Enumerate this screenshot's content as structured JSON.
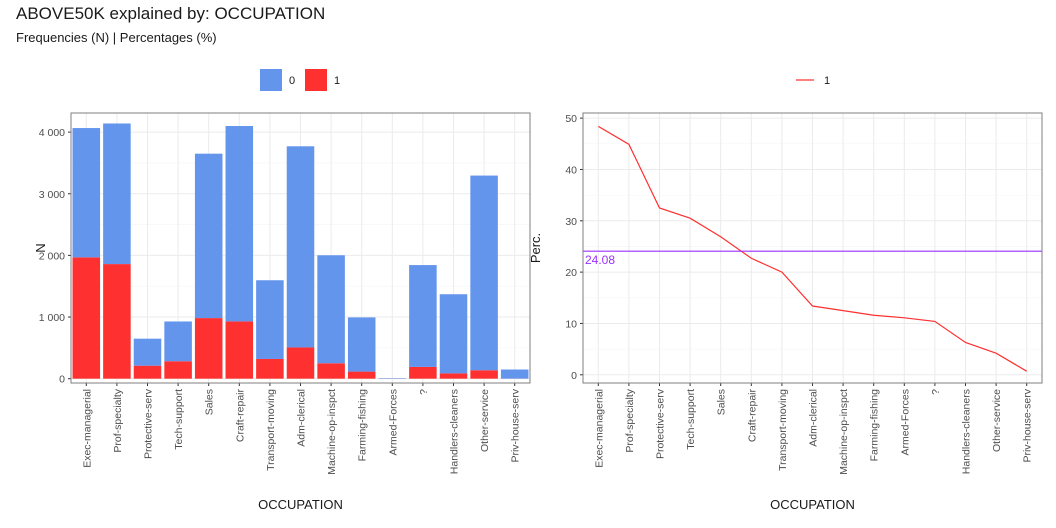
{
  "title": "ABOVE50K explained by: OCCUPATION",
  "subtitle": "Frequencies (N) | Percentages (%)",
  "colors": {
    "zero": "#6495ED",
    "one": "#FF3030",
    "ref": "#9B30FF",
    "grid": "#EBEBEB",
    "minor": "#F5F5F5",
    "panel_border": "#7F7F7F"
  },
  "chart_data": [
    {
      "type": "bar",
      "stacked": true,
      "xlabel": "OCCUPATION",
      "ylabel": "N",
      "ylim": [
        -70,
        4310
      ],
      "yticks": [
        0,
        1000,
        2000,
        3000,
        4000
      ],
      "ytick_labels": [
        "0",
        "1 000",
        "2 000",
        "3 000",
        "4 000"
      ],
      "legend_position": "top",
      "categories": [
        "Exec-managerial",
        "Prof-specialty",
        "Protective-serv",
        "Tech-support",
        "Sales",
        "Craft-repair",
        "Transport-moving",
        "Adm-clerical",
        "Machine-op-inspct",
        "Farming-fishing",
        "Armed-Forces",
        "?",
        "Handlers-cleaners",
        "Other-service",
        "Priv-house-serv"
      ],
      "series": [
        {
          "name": "0",
          "color": "#6495ED",
          "values": [
            2098,
            2281,
            438,
            645,
            2667,
            3170,
            1277,
            3263,
            1752,
            879,
            8,
            1652,
            1284,
            3158,
            148
          ]
        },
        {
          "name": "1",
          "color": "#FF3030",
          "values": [
            1968,
            1859,
            211,
            283,
            983,
            929,
            320,
            507,
            250,
            115,
            1,
            191,
            86,
            137,
            1
          ]
        }
      ]
    },
    {
      "type": "line",
      "xlabel": "OCCUPATION",
      "ylabel": "Perc.",
      "ylim": [
        -1.6,
        51
      ],
      "yticks": [
        0,
        10,
        20,
        30,
        40,
        50
      ],
      "ytick_labels": [
        "0",
        "10",
        "20",
        "30",
        "40",
        "50"
      ],
      "legend_position": "top",
      "categories": [
        "Exec-managerial",
        "Prof-specialty",
        "Protective-serv",
        "Tech-support",
        "Sales",
        "Craft-repair",
        "Transport-moving",
        "Adm-clerical",
        "Machine-op-inspct",
        "Farming-fishing",
        "Armed-Forces",
        "?",
        "Handlers-cleaners",
        "Other-service",
        "Priv-house-serv"
      ],
      "series": [
        {
          "name": "1",
          "color": "#FF3030",
          "values": [
            48.4,
            44.9,
            32.5,
            30.5,
            26.9,
            22.7,
            20.0,
            13.4,
            12.5,
            11.6,
            11.1,
            10.4,
            6.3,
            4.2,
            0.7
          ]
        }
      ],
      "reference_line": {
        "value": 24.08,
        "label": "24.08",
        "color": "#9B30FF"
      }
    }
  ]
}
